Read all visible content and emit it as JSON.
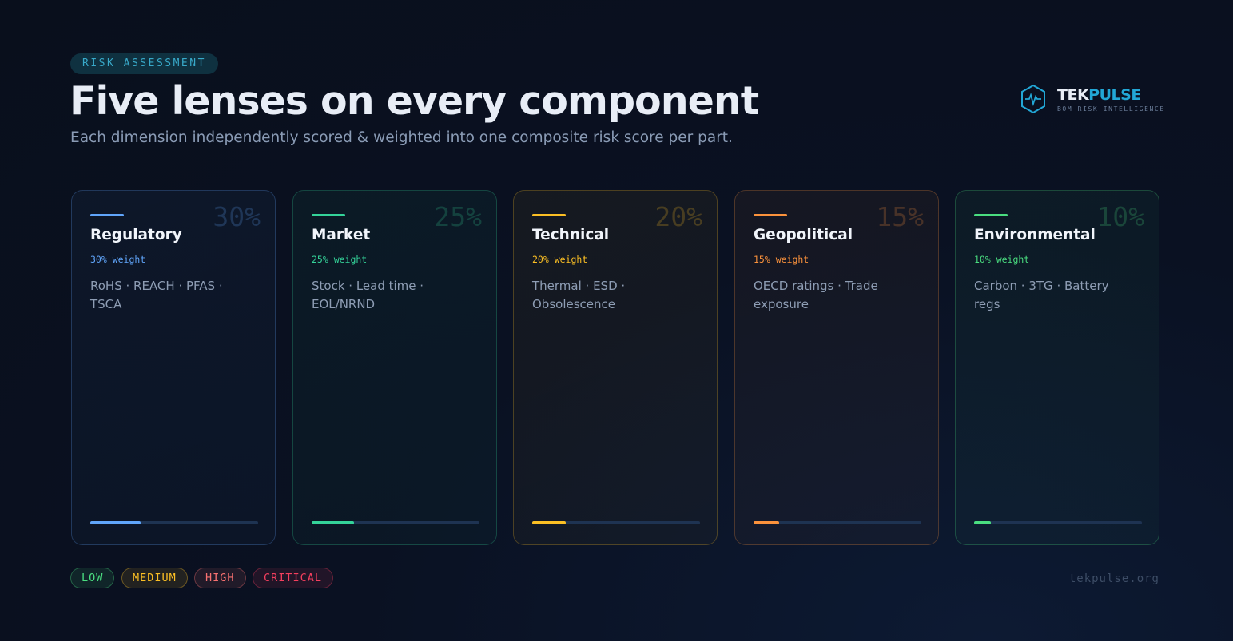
{
  "header": {
    "eyebrow": "RISK ASSESSMENT",
    "title": "Five lenses on every component",
    "subtitle": "Each dimension independently scored & weighted into one composite risk score per part."
  },
  "brand": {
    "name_a": "TEK",
    "name_b": "PULSE",
    "tagline": "BOM RISK INTELLIGENCE"
  },
  "cards": [
    {
      "title": "Regulatory",
      "weight": {
        "value": 30,
        "label": "30%"
      },
      "caption": "30% weight",
      "description": "RoHS · REACH · PFAS · TSCA",
      "color": "#60a5fa"
    },
    {
      "title": "Market",
      "weight": {
        "value": 25,
        "label": "25%"
      },
      "caption": "25% weight",
      "description": "Stock · Lead time · EOL/NRND",
      "color": "#34d399"
    },
    {
      "title": "Technical",
      "weight": {
        "value": 20,
        "label": "20%"
      },
      "caption": "20% weight",
      "description": "Thermal · ESD · Obsolescence",
      "color": "#fbbf24"
    },
    {
      "title": "Geopolitical",
      "weight": {
        "value": 15,
        "label": "15%"
      },
      "caption": "15% weight",
      "description": "OECD ratings · Trade exposure",
      "color": "#fb923c"
    },
    {
      "title": "Environmental",
      "weight": {
        "value": 10,
        "label": "10%"
      },
      "caption": "10% weight",
      "description": "Carbon · 3TG · Battery regs",
      "color": "#4ade80"
    }
  ],
  "legend": [
    {
      "label": "LOW",
      "color": "#4ade80"
    },
    {
      "label": "MEDIUM",
      "color": "#fbbf24"
    },
    {
      "label": "HIGH",
      "color": "#f87171"
    },
    {
      "label": "CRITICAL",
      "color": "#f43f5e"
    }
  ],
  "footer": {
    "site": "tekpulse.org"
  }
}
